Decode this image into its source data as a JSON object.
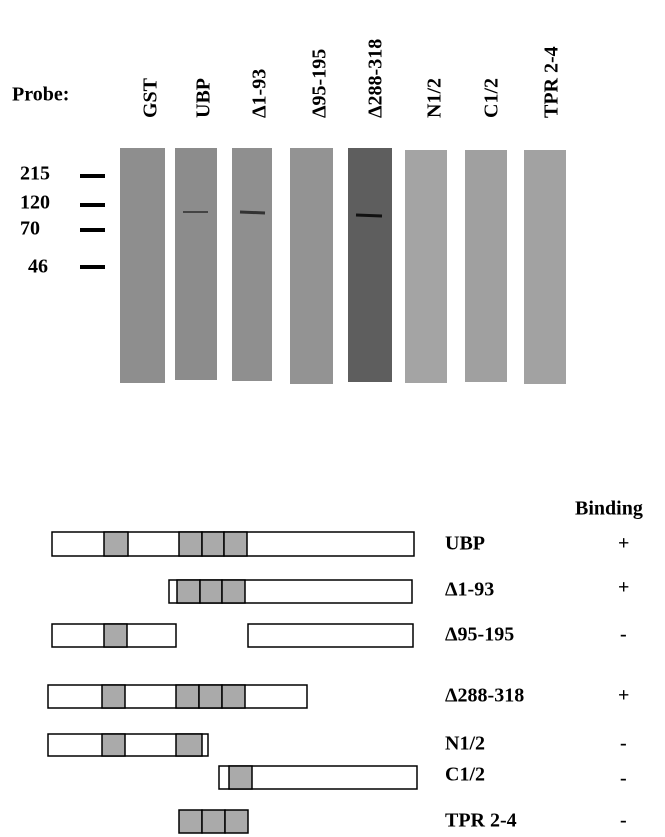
{
  "probe_label": "Probe:",
  "lanes": [
    "GST",
    "UBP",
    "Δ1-93",
    "Δ95-195",
    "Δ288-318",
    "N1/2",
    "C1/2",
    "TPR 2-4"
  ],
  "markers": [
    215,
    120,
    70,
    46
  ],
  "binding_header": "Binding",
  "constructs": [
    {
      "name": "UBP",
      "binding": "+"
    },
    {
      "name": "Δ1-93",
      "binding": "+"
    },
    {
      "name": "Δ95-195",
      "binding": "-"
    },
    {
      "name": "Δ288-318",
      "binding": "+"
    },
    {
      "name": "N1/2",
      "binding": "-"
    },
    {
      "name": "C1/2",
      "binding": "-"
    },
    {
      "name": "TPR 2-4",
      "binding": "-"
    }
  ]
}
